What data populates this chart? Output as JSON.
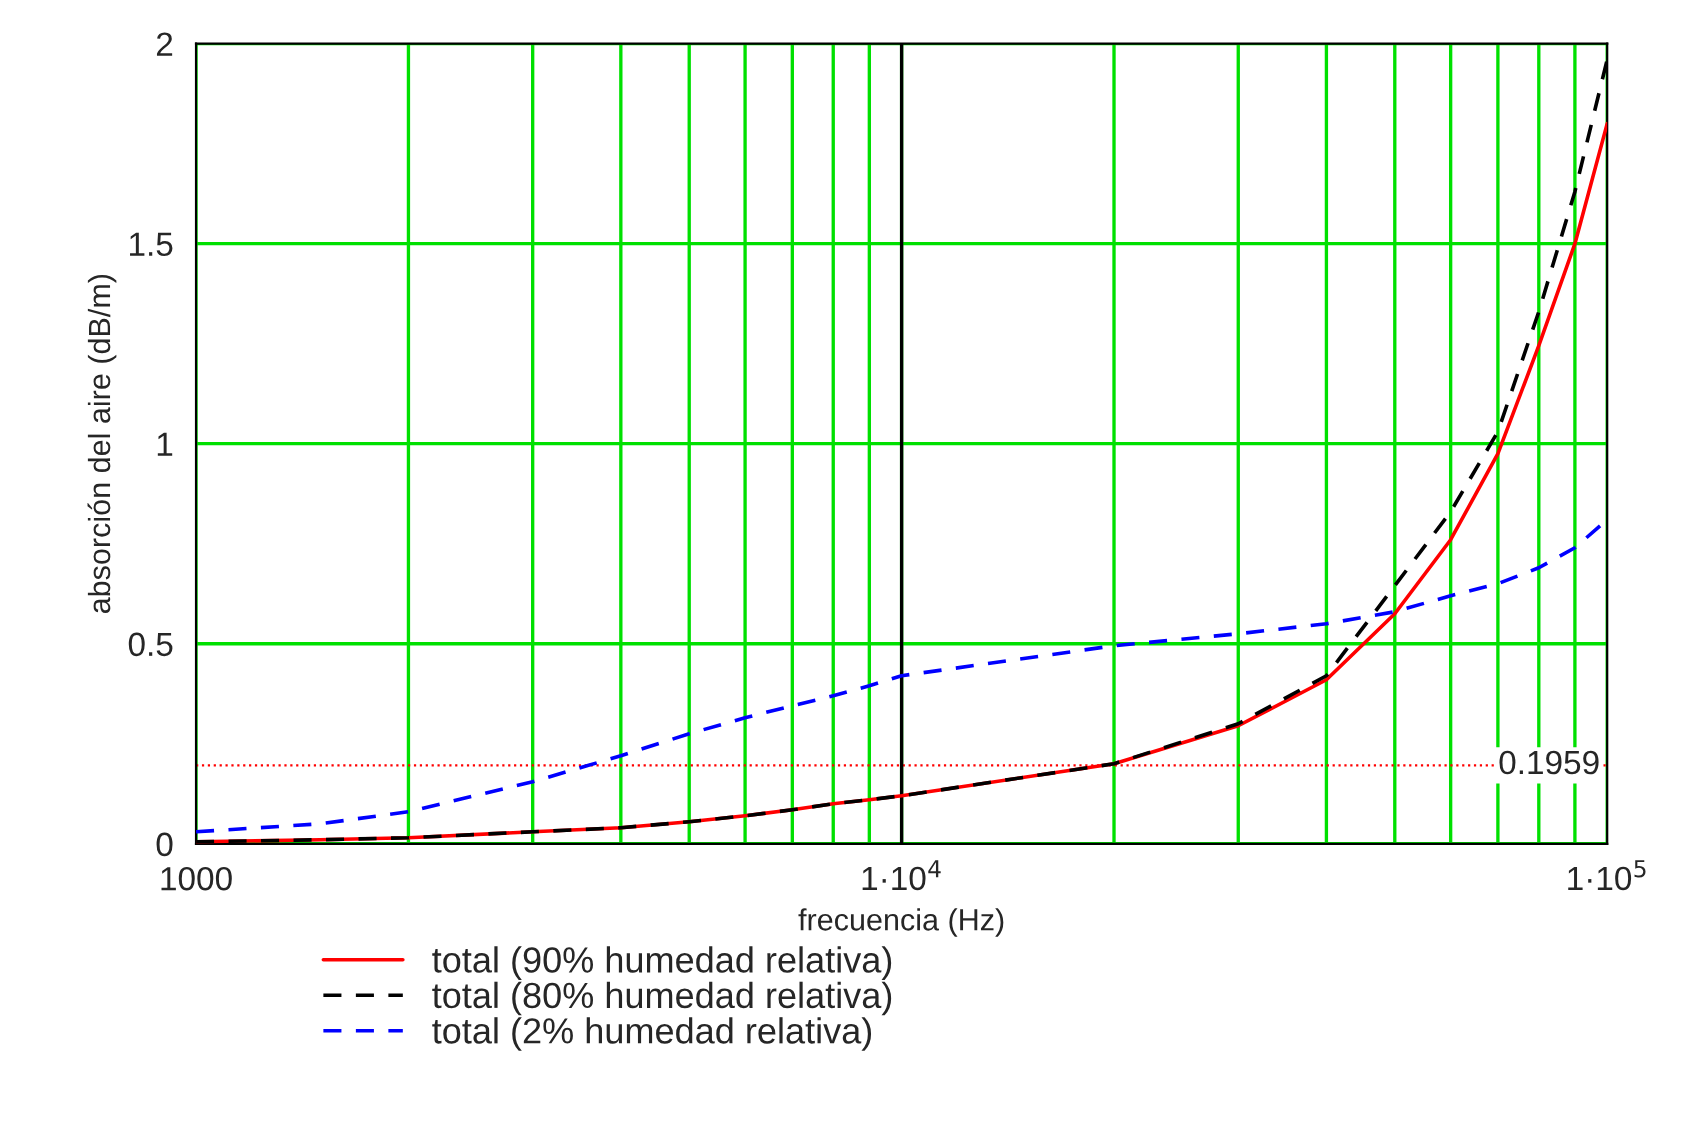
{
  "chart_data": {
    "type": "line",
    "xlabel": "frecuencia (Hz)",
    "ylabel": "absorción del aire (dB/m)",
    "x": [
      1000,
      1500,
      2000,
      3000,
      4000,
      5000,
      6000,
      7000,
      8000,
      9000,
      10000,
      20000,
      30000,
      40000,
      50000,
      60000,
      70000,
      80000,
      90000,
      100000
    ],
    "series": [
      {
        "name": "total (90% humedad relativa)",
        "color": "#ff0000",
        "line_style": "solid",
        "values": [
          0.005,
          0.01,
          0.015,
          0.03,
          0.04,
          0.055,
          0.07,
          0.085,
          0.1,
          0.11,
          0.12,
          0.2,
          0.295,
          0.41,
          0.575,
          0.76,
          0.975,
          1.245,
          1.5,
          1.8
        ]
      },
      {
        "name": "total (80% humedad relativa)",
        "color": "#000000",
        "line_style": "dashed",
        "values": [
          0.005,
          0.01,
          0.015,
          0.03,
          0.04,
          0.055,
          0.07,
          0.085,
          0.1,
          0.11,
          0.12,
          0.2,
          0.3,
          0.42,
          0.645,
          0.83,
          1.03,
          1.33,
          1.63,
          1.96
        ]
      },
      {
        "name": "total (2% humedad relativa)",
        "color": "#0000ff",
        "line_style": "dashed",
        "values": [
          0.03,
          0.05,
          0.08,
          0.155,
          0.22,
          0.275,
          0.315,
          0.345,
          0.37,
          0.395,
          0.42,
          0.495,
          0.525,
          0.55,
          0.58,
          0.62,
          0.65,
          0.69,
          0.74,
          0.81
        ]
      }
    ],
    "log": "x",
    "xlim": [
      1000,
      100000
    ],
    "xticks": [
      1000,
      {
        "value": 2000,
        "label": null
      },
      {
        "value": 3000,
        "label": null
      },
      {
        "value": 4000,
        "label": null
      },
      {
        "value": 5000,
        "label": null
      },
      {
        "value": 6000,
        "label": null
      },
      {
        "value": 7000,
        "label": null
      },
      {
        "value": 8000,
        "label": null
      },
      {
        "value": 9000,
        "label": null
      },
      {
        "value": 10000,
        "label": "1·10$^{4}$"
      },
      {
        "value": 20000,
        "label": null
      },
      {
        "value": 30000,
        "label": null
      },
      {
        "value": 40000,
        "label": null
      },
      {
        "value": 50000,
        "label": null
      },
      {
        "value": 60000,
        "label": null
      },
      {
        "value": 70000,
        "label": null
      },
      {
        "value": 80000,
        "label": null
      },
      {
        "value": 90000,
        "label": null
      },
      {
        "value": 100000,
        "label": "1·10$^{5}$"
      }
    ],
    "ylim": [
      0,
      2
    ],
    "yticks": [
      0,
      0.5,
      1,
      1.5,
      2
    ],
    "grid": true,
    "legend": "bottom",
    "ref_lines": [
      {
        "axis": "y",
        "value": 0.1959,
        "label": "0.1959",
        "color": "#ff0000",
        "line_style": "dotted"
      },
      {
        "axis": "x",
        "value": 10000,
        "color": "#000000",
        "line_style": "solid"
      }
    ]
  }
}
